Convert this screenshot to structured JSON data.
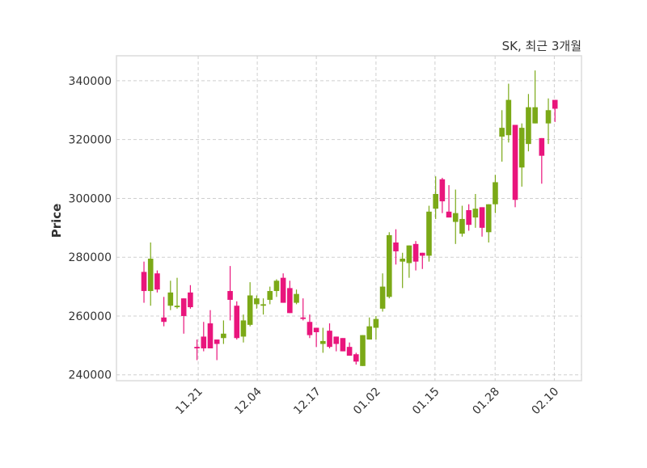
{
  "chart_data": {
    "type": "candlestick",
    "title": "SK, 최근 3개월",
    "xlabel": "",
    "ylabel": "Price",
    "ylim": [
      238000,
      348500
    ],
    "xlim_index": [
      -4.15,
      66.0
    ],
    "yticks": [
      240000,
      260000,
      280000,
      300000,
      320000,
      340000
    ],
    "xticks": [
      {
        "label": "11.21",
        "index": 8.18
      },
      {
        "label": "12.04",
        "index": 17.09
      },
      {
        "label": "12.17",
        "index": 26.0
      },
      {
        "label": "01.02",
        "index": 35.0
      },
      {
        "label": "01.15",
        "index": 43.9
      },
      {
        "label": "01.28",
        "index": 52.97
      },
      {
        "label": "02.10",
        "index": 61.9
      }
    ],
    "grid": true,
    "up_color": "#7ba917",
    "down_color": "#e9157c",
    "columns": [
      "open",
      "high",
      "low",
      "close"
    ],
    "candles": [
      [
        275000,
        278500,
        264500,
        268500
      ],
      [
        268500,
        285000,
        263500,
        279500
      ],
      [
        274500,
        275500,
        268000,
        269000
      ],
      [
        259500,
        266500,
        256500,
        258000
      ],
      [
        263500,
        272000,
        262000,
        268000
      ],
      [
        263000,
        273000,
        262500,
        263500
      ],
      [
        266000,
        266000,
        254000,
        260000
      ],
      [
        268000,
        270500,
        262500,
        263000
      ],
      [
        249500,
        252000,
        245000,
        249000
      ],
      [
        253000,
        258000,
        248000,
        249000
      ],
      [
        257500,
        262000,
        249000,
        249000
      ],
      [
        252000,
        252000,
        245000,
        250500
      ],
      [
        252500,
        258500,
        250500,
        254000
      ],
      [
        268500,
        277000,
        258500,
        265500
      ],
      [
        263500,
        265000,
        252000,
        252500
      ],
      [
        253000,
        260500,
        251000,
        258500
      ],
      [
        257000,
        271500,
        256500,
        267000
      ],
      [
        264000,
        267000,
        262500,
        266000
      ],
      [
        263500,
        266000,
        260500,
        264000
      ],
      [
        265500,
        270000,
        264000,
        268500
      ],
      [
        268500,
        272500,
        266500,
        272000
      ],
      [
        273000,
        274500,
        264500,
        264500
      ],
      [
        269500,
        272000,
        261000,
        261000
      ],
      [
        264500,
        269000,
        264000,
        267500
      ],
      [
        259500,
        266000,
        258500,
        259000
      ],
      [
        258000,
        260500,
        252500,
        253500
      ],
      [
        256000,
        256000,
        249500,
        254500
      ],
      [
        250500,
        256000,
        247500,
        251500
      ],
      [
        255000,
        257500,
        249000,
        249500
      ],
      [
        253000,
        253000,
        248000,
        250500
      ],
      [
        252500,
        252500,
        248000,
        248000
      ],
      [
        249500,
        251000,
        246500,
        246500
      ],
      [
        247000,
        247500,
        243500,
        244500
      ],
      [
        243000,
        253500,
        243000,
        253500
      ],
      [
        252000,
        259500,
        252000,
        256500
      ],
      [
        256000,
        260000,
        252000,
        259000
      ],
      [
        262500,
        274500,
        261500,
        270000
      ],
      [
        266500,
        288500,
        266000,
        287500
      ],
      [
        285000,
        289500,
        277500,
        282000
      ],
      [
        278500,
        281500,
        269500,
        279500
      ],
      [
        278000,
        284000,
        273000,
        284000
      ],
      [
        284500,
        285500,
        275500,
        278500
      ],
      [
        281500,
        281500,
        276000,
        280500
      ],
      [
        280500,
        297500,
        278500,
        295500
      ],
      [
        296500,
        307500,
        293000,
        301500
      ],
      [
        306500,
        307000,
        295000,
        299000
      ],
      [
        295500,
        304500,
        293500,
        293500
      ],
      [
        292000,
        303000,
        284500,
        295000
      ],
      [
        288000,
        297500,
        287000,
        293000
      ],
      [
        296000,
        298000,
        289000,
        291000
      ],
      [
        293500,
        301500,
        290000,
        296500
      ],
      [
        297000,
        297000,
        287000,
        290000
      ],
      [
        288500,
        298000,
        285000,
        298000
      ],
      [
        298000,
        308000,
        295000,
        305500
      ],
      [
        321000,
        330000,
        312500,
        324000
      ],
      [
        321500,
        339000,
        319000,
        333500
      ],
      [
        325000,
        325000,
        297000,
        299500
      ],
      [
        310500,
        325500,
        304000,
        324000
      ],
      [
        318500,
        335500,
        316000,
        331000
      ],
      [
        325500,
        343500,
        325500,
        331000
      ],
      [
        320500,
        320500,
        305000,
        314500
      ],
      [
        325500,
        334000,
        318500,
        330000
      ],
      [
        333500,
        333500,
        326000,
        330500
      ]
    ]
  }
}
